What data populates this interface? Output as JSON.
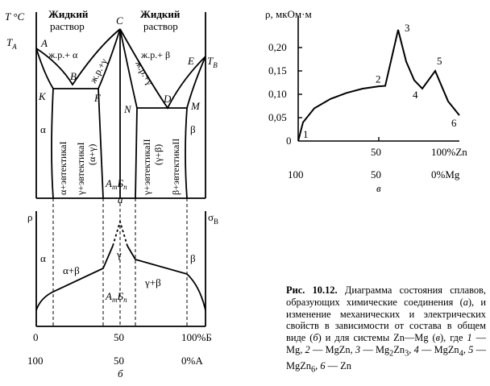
{
  "diagram_a": {
    "t_axis": "T °C",
    "liquid_left": [
      "Жидкий",
      "раствор"
    ],
    "liquid_right": [
      "Жидкий",
      "раствор"
    ],
    "points": {
      "ta": "T",
      "ta_sub": "A",
      "tb": "T",
      "tb_sub": "B",
      "a": "A",
      "b": "B",
      "c": "C",
      "d": "D",
      "e": "E",
      "f": "F",
      "k": "K",
      "n": "N",
      "m": "M"
    },
    "field_lalpha": "ж.р.+ α",
    "field_lbeta": "ж.р.+ β",
    "field_lgamma_left": "ж.р.+γ",
    "field_lgamma_right": "ж.р.+γ",
    "field_alpha": "α",
    "field_beta": "β",
    "vert_1": "α+эвтектикаI",
    "vert_2": "γ+эвтектикаI",
    "vert_2b": "(α+γ)",
    "vert_3": "γ+эвтектикаII",
    "vert_3b": "(γ+β)",
    "vert_4": "β+эвтектикаII",
    "compound": "AmБn",
    "compound_m": "A",
    "compound_m_sub": "m",
    "compound_n": "Б",
    "compound_n_sub": "n",
    "panel_letter": "а"
  },
  "diagram_b": {
    "rho": "ρ",
    "sigma": "σ",
    "sigma_sub": "В",
    "field_alpha": "α",
    "field_alpha_beta": "α+β",
    "field_gamma": "γ",
    "field_gamma_beta": "γ+β",
    "field_beta": "β",
    "compound_m": "A",
    "compound_m_sub": "m",
    "compound_n": "Б",
    "compound_n_sub": "n",
    "x_top": [
      "0",
      "50",
      "100%Б"
    ],
    "x_bottom": [
      "100",
      "50",
      "0%A"
    ],
    "panel_letter": "б"
  },
  "diagram_c": {
    "y_label": "ρ, мкОм·м",
    "y_ticks": [
      "0,20",
      "0,15",
      "0,10",
      "0,05",
      "0"
    ],
    "x_top": [
      "50",
      "100%Zn"
    ],
    "x_bottom": [
      "100",
      "50",
      "0%Mg"
    ],
    "point_labels": [
      "1",
      "2",
      "3",
      "4",
      "5",
      "6"
    ],
    "panel_letter": "в"
  },
  "chart_data": {
    "type": "line",
    "title": "",
    "xlabel": "%Zn",
    "ylabel": "ρ, мкОм·м",
    "ylim": [
      0,
      0.25
    ],
    "xlim": [
      0,
      100
    ],
    "series": [
      {
        "values": [
          {
            "x": 0,
            "y": 0.0
          },
          {
            "x": 3,
            "y": 0.04
          },
          {
            "x": 10,
            "y": 0.07
          },
          {
            "x": 20,
            "y": 0.09
          },
          {
            "x": 30,
            "y": 0.103
          },
          {
            "x": 40,
            "y": 0.112
          },
          {
            "x": 50,
            "y": 0.117
          },
          {
            "x": 54,
            "y": 0.118
          },
          {
            "x": 62,
            "y": 0.238
          },
          {
            "x": 67,
            "y": 0.17
          },
          {
            "x": 72,
            "y": 0.13
          },
          {
            "x": 77,
            "y": 0.112
          },
          {
            "x": 85,
            "y": 0.15
          },
          {
            "x": 93,
            "y": 0.085
          },
          {
            "x": 100,
            "y": 0.055
          }
        ]
      }
    ],
    "labeled_points": [
      {
        "label": "1",
        "x": 0,
        "y": 0.0
      },
      {
        "label": "2",
        "x": 54,
        "y": 0.118
      },
      {
        "label": "3",
        "x": 62,
        "y": 0.238
      },
      {
        "label": "4",
        "x": 77,
        "y": 0.112
      },
      {
        "label": "5",
        "x": 85,
        "y": 0.15
      },
      {
        "label": "6",
        "x": 100,
        "y": 0.055
      }
    ]
  },
  "caption": {
    "lead": "Рис. 10.12.",
    "p1": " Диаграмма состояния сплавов, образующих химические соединения (",
    "a": "а",
    "p2": "), и изменение механических и электрических свойств в зависимости от состава в общем виде (",
    "b": "б",
    "p3": ") и для системы Zn—Mg (",
    "c": "в",
    "p4": "), где ",
    "n1": "1",
    "t1": " — Mg, ",
    "n2": "2",
    "t2": " — MgZn, ",
    "n3": "3",
    "t3a": " — Mg",
    "t3s1": "2",
    "t3b": "Zn",
    "t3s2": "3",
    "t3c": ", ",
    "n4": "4",
    "t4a": " — MgZn",
    "t4s": "4",
    "t4b": ",",
    "n5": "5",
    "t5a": " — MgZn",
    "t5s": "6",
    "t5b": ", ",
    "n6": "6",
    "t6": " — Zn"
  }
}
